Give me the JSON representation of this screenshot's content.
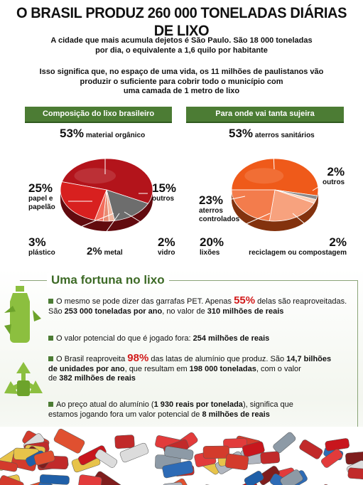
{
  "headline": "O BRASIL PRODUZ 260 000 TONELADAS DIÁRIAS DE LIXO",
  "intro1_line1": "A cidade que mais acumula dejetos é São Paulo. São 18 000 toneladas",
  "intro1_line2": "por dia, o equivalente a 1,6 quilo por habitante",
  "intro2_line1": "Isso significa que, no espaço de uma vida, os 11 milhões de paulistanos vão",
  "intro2_line2": "produzir o suficiente para cobrir todo o município com",
  "intro2_line3": "uma camada de 1 metro de lixo",
  "colors": {
    "green": "#4c7c34",
    "red_slice": "#b3141b",
    "orange_slice": "#ef5a1a",
    "grey_slice": "#6d6d6d",
    "highlight": "#d21a1a"
  },
  "chart_data": [
    {
      "type": "pie",
      "title": "Composição do lixo brasileiro",
      "slices": [
        {
          "label": "material orgânico",
          "value": 53,
          "pct_text": "53%",
          "color": "#b3141b"
        },
        {
          "label": "outros",
          "value": 15,
          "pct_text": "15%",
          "color": "#6d6d6d"
        },
        {
          "label": "vidro",
          "value": 2,
          "pct_text": "2%",
          "color": "#f2b7a0"
        },
        {
          "label": "metal",
          "value": 2,
          "pct_text": "2%",
          "color": "#e88b72"
        },
        {
          "label": "plástico",
          "value": 3,
          "pct_text": "3%",
          "color": "#f36b5a"
        },
        {
          "label": "papel e papelão",
          "label_line1": "papel e",
          "label_line2": "papelão",
          "value": 25,
          "pct_text": "25%",
          "color": "#d8201f"
        }
      ]
    },
    {
      "type": "pie",
      "title": "Para onde vai tanta sujeira",
      "slices": [
        {
          "label": "aterros sanitários",
          "value": 53,
          "pct_text": "53%",
          "color": "#ef5a1a"
        },
        {
          "label": "outros",
          "value": 2,
          "pct_text": "2%",
          "color": "#8a8a8a"
        },
        {
          "label": "reciclagem ou compostagem",
          "value": 2,
          "pct_text": "2%",
          "color": "#fbd0b8"
        },
        {
          "label": "lixões",
          "value": 20,
          "pct_text": "20%",
          "color": "#f7a27e"
        },
        {
          "label": "aterros controlados",
          "label_line1": "aterros",
          "label_line2": "controlados",
          "value": 23,
          "pct_text": "23%",
          "color": "#f37c4c"
        }
      ]
    }
  ],
  "fortune": {
    "title": "Uma fortuna no lixo",
    "p1": {
      "a": "O mesmo se pode dizer das garrafas PET. Apenas ",
      "pct": "55%",
      "b": " delas são reaproveitadas.",
      "c": "São ",
      "d": "253 000 toneladas por ano",
      "e": ", no valor de ",
      "f": "310 milhões de reais"
    },
    "p2": {
      "a": "O valor potencial do que é jogado fora: ",
      "b": "254 milhões de reais"
    },
    "p3": {
      "a": "O Brasil reaproveita ",
      "pct": "98%",
      "b": " das latas de alumínio que produz. São ",
      "c": "14,7 bilhões",
      "d": "de unidades por ano",
      "e": ", que resultam em ",
      "f": "198 000 toneladas",
      "g": ", com o valor",
      "h": "de ",
      "i": "382 milhões de reais"
    },
    "p4": {
      "a": "Ao preço atual do alumínio (",
      "b": "1 930 reais por tonelada",
      "c": "), significa que",
      "d": "estamos jogando fora um valor potencial de ",
      "e": "8 milhões de reais"
    }
  }
}
